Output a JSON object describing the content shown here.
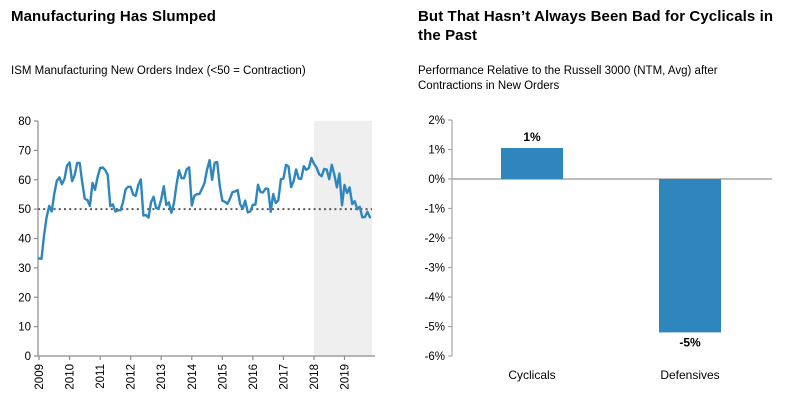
{
  "colors": {
    "accent_blue": "#2E86BD",
    "highlight_shade": "#EFEFEF",
    "dotted_line": "#595959",
    "axis_gray": "#8C8C8C",
    "zero_line_gray": "#A6A6A6",
    "text": "#000000"
  },
  "chart_data": [
    {
      "type": "line",
      "title": "Manufacturing Has Slumped",
      "subtitle": "ISM Manufacturing New Orders Index (<50 = Contraction)",
      "x_start_year": 2009,
      "points_per_month": 1,
      "x_tick_labels": [
        "2009",
        "2010",
        "2011",
        "2012",
        "2013",
        "2014",
        "2015",
        "2016",
        "2017",
        "2018",
        "2019"
      ],
      "ylim": [
        0,
        80
      ],
      "y_ticks": [
        0,
        10,
        20,
        30,
        40,
        50,
        60,
        70,
        80
      ],
      "reference_line_value": 50,
      "shaded_region_start_year": 2018,
      "legend": "none",
      "grid": false,
      "values": [
        33.2,
        33.1,
        41.2,
        47.2,
        51.1,
        49.2,
        55.3,
        59.6,
        60.8,
        58.5,
        60.3,
        64.8,
        65.9,
        59.5,
        61.5,
        65.7,
        65.7,
        58.9,
        53.5,
        53.1,
        51.1,
        58.9,
        56.6,
        60.9,
        64.0,
        64.2,
        63.3,
        61.7,
        51.0,
        51.6,
        49.2,
        49.6,
        49.6,
        52.4,
        56.7,
        57.6,
        57.6,
        54.9,
        54.5,
        58.2,
        60.1,
        47.8,
        48.0,
        47.1,
        52.3,
        54.2,
        50.3,
        50.3,
        53.3,
        57.8,
        51.4,
        52.3,
        48.8,
        51.9,
        58.3,
        63.2,
        60.5,
        60.6,
        63.6,
        64.2,
        51.2,
        54.5,
        55.1,
        55.1,
        56.9,
        58.9,
        63.4,
        66.7,
        60.0,
        65.8,
        66.0,
        57.8,
        52.9,
        52.5,
        51.8,
        53.5,
        55.8,
        56.0,
        56.5,
        51.7,
        50.1,
        52.9,
        48.9,
        49.2,
        51.5,
        51.5,
        58.3,
        55.8,
        55.7,
        57.0,
        56.9,
        49.1,
        55.1,
        52.1,
        53.0,
        60.2,
        60.4,
        65.1,
        64.5,
        57.5,
        59.5,
        63.5,
        60.4,
        60.3,
        64.6,
        63.4,
        64.0,
        67.4,
        65.4,
        64.2,
        61.9,
        61.2,
        63.7,
        63.5,
        60.2,
        65.1,
        61.8,
        57.4,
        62.1,
        51.3,
        58.2,
        55.5,
        57.4,
        51.7,
        52.7,
        50.0,
        50.8,
        47.2,
        47.3,
        49.1,
        47.2
      ]
    },
    {
      "type": "bar",
      "title": "But That Hasn’t Always Been Bad for Cyclicals in the Past",
      "subtitle": "Performance Relative to the Russell 3000 (NTM, Avg) after Contractions in New Orders",
      "categories": [
        "Cyclicals",
        "Defensives"
      ],
      "values": [
        1.05,
        -5.2
      ],
      "data_labels": [
        "1%",
        "-5%"
      ],
      "y_tick_labels": [
        "2%",
        "1%",
        "0%",
        "-1%",
        "-2%",
        "-3%",
        "-4%",
        "-5%",
        "-6%"
      ],
      "y_tick_values": [
        2,
        1,
        0,
        -1,
        -2,
        -3,
        -4,
        -5,
        -6
      ],
      "ylim": [
        -6,
        2
      ],
      "legend": "none",
      "grid": false
    }
  ]
}
